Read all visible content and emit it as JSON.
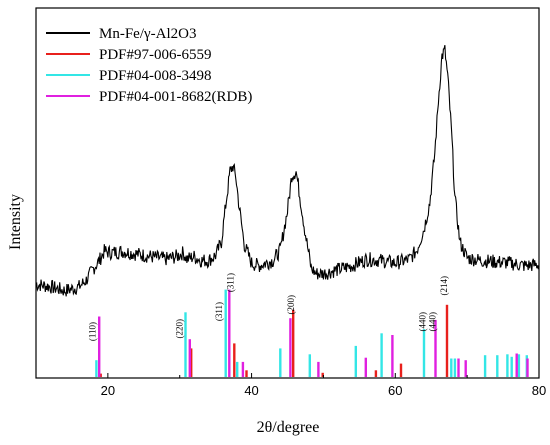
{
  "chart_data": {
    "type": "line",
    "title": "",
    "xlabel": "2θ/degree",
    "ylabel": "Intensity",
    "xlim": [
      10,
      80
    ],
    "xticks": [
      20,
      40,
      60,
      80
    ],
    "xtick_labels": [
      "20",
      "40",
      "60",
      "80"
    ],
    "y_ticks_shown": false,
    "grid": false,
    "legend_position": "top-left",
    "series": [
      {
        "name": "Mn-Fe/γ-Al2O3",
        "kind": "line",
        "color": "#000000",
        "x": [
          10,
          12,
          14,
          15,
          16,
          17,
          18,
          18.8,
          19.5,
          20.5,
          22,
          24,
          26,
          28,
          29.5,
          30.5,
          31,
          32,
          33,
          34,
          35,
          35.8,
          36.4,
          37,
          37.4,
          37.8,
          38.3,
          39,
          40,
          41,
          42,
          43,
          44,
          45,
          45.6,
          46.2,
          46.8,
          47.5,
          48.3,
          49,
          50,
          52,
          54,
          56,
          58,
          60,
          62,
          63,
          64,
          64.8,
          65.5,
          66,
          66.5,
          66.9,
          67.3,
          67.8,
          68.3,
          69,
          70,
          72,
          74,
          76,
          78,
          80
        ],
        "y": [
          0.3,
          0.2,
          0.05,
          0.12,
          0.2,
          0.45,
          0.9,
          1.2,
          1.55,
          1.5,
          1.55,
          1.45,
          1.35,
          1.25,
          1.35,
          1.5,
          1.25,
          1.35,
          1.2,
          1.2,
          1.4,
          1.9,
          3.3,
          4.6,
          4.8,
          4.4,
          3.2,
          1.8,
          1.1,
          1.0,
          1.1,
          1.2,
          1.6,
          3.1,
          4.45,
          4.6,
          3.5,
          2.2,
          0.9,
          0.7,
          0.7,
          0.85,
          1.0,
          1.25,
          1.2,
          1.1,
          1.25,
          1.6,
          2.4,
          3.4,
          5.3,
          7.3,
          9.0,
          9.2,
          8.2,
          6.2,
          3.6,
          1.9,
          1.3,
          1.2,
          1.15,
          1.1,
          1.0,
          1.05
        ]
      },
      {
        "name": "PDF#97-006-6559",
        "kind": "stick",
        "color": "#e8201c",
        "x": [
          19.0,
          31.6,
          37.6,
          39.3,
          45.8,
          49.9,
          57.3,
          60.8,
          67.2
        ],
        "values": [
          4,
          34,
          40,
          8,
          80,
          5,
          8,
          16,
          86
        ]
      },
      {
        "name": "PDF#04-008-3498",
        "kind": "stick",
        "color": "#33e6e6",
        "x": [
          18.4,
          30.8,
          36.4,
          38.0,
          44.0,
          48.1,
          54.5,
          58.1,
          64.0,
          67.8,
          68.3,
          72.5,
          74.2,
          75.6,
          76.2,
          77.2,
          78.3
        ],
        "values": [
          20,
          77,
          104,
          18,
          34,
          27,
          37,
          52,
          57,
          22,
          22,
          26,
          26,
          27,
          24,
          27,
          26
        ]
      },
      {
        "name": "PDF#04-001-8682(RDB)",
        "kind": "stick",
        "color": "#e020e0",
        "x": [
          18.8,
          31.4,
          36.9,
          38.8,
          45.4,
          49.3,
          55.9,
          59.6,
          65.6,
          68.8,
          69.8,
          76.9,
          78.4
        ],
        "values": [
          72,
          45,
          104,
          18,
          70,
          18,
          23,
          50,
          68,
          22,
          20,
          28,
          22
        ]
      }
    ],
    "annotations": [
      {
        "text": "(110)",
        "x": 18.3
      },
      {
        "text": "(220)",
        "x": 30.4
      },
      {
        "text": "(311)",
        "x": 35.9
      },
      {
        "text": "(311)",
        "x": 37.5
      },
      {
        "text": "(200)",
        "x": 45.9
      },
      {
        "text": "(440)",
        "x": 64.2
      },
      {
        "text": "(440)",
        "x": 65.6
      },
      {
        "text": "(214)",
        "x": 67.2
      }
    ]
  }
}
